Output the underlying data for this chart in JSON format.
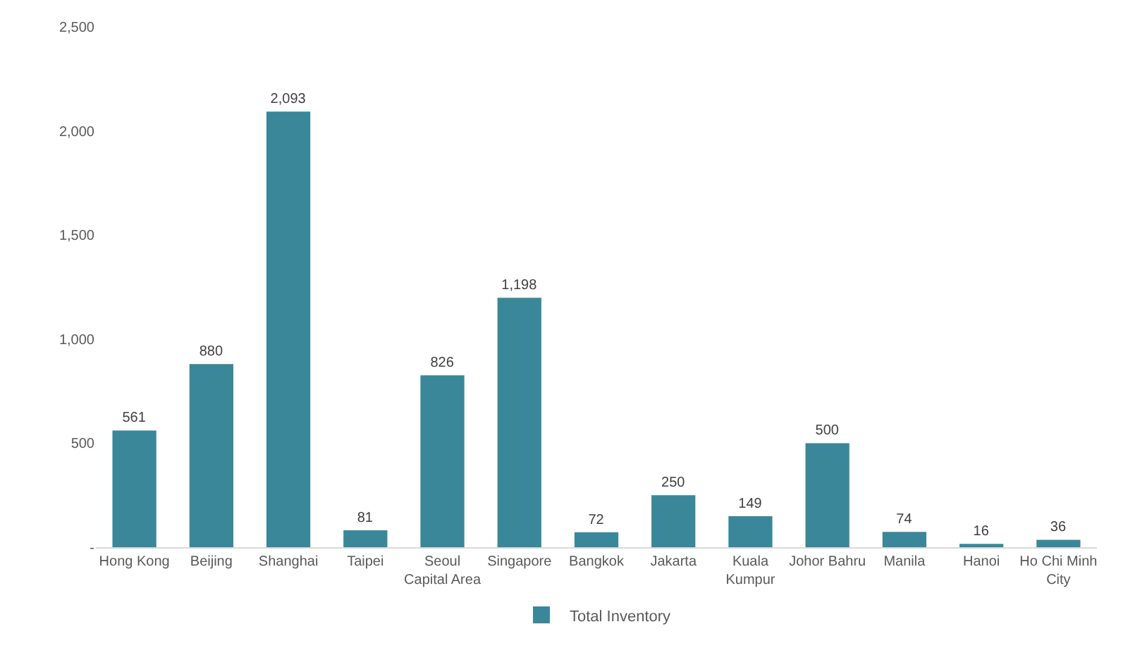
{
  "chart_data": {
    "type": "bar",
    "categories": [
      "Hong Kong",
      "Beijing",
      "Shanghai",
      "Taipei",
      "Seoul\nCapital Area",
      "Singapore",
      "Bangkok",
      "Jakarta",
      "Kuala\nKumpur",
      "Johor Bahru",
      "Manila",
      "Hanoi",
      "Ho Chi Minh\nCity"
    ],
    "series": [
      {
        "name": "Total Inventory",
        "color": "#3a8799",
        "values": [
          561,
          880,
          2093,
          81,
          826,
          1198,
          72,
          250,
          149,
          500,
          74,
          16,
          36
        ],
        "value_labels": [
          "561",
          "880",
          "2,093",
          "81",
          "826",
          "1,198",
          "72",
          "250",
          "149",
          "500",
          "74",
          "16",
          "36"
        ]
      }
    ],
    "ylim": [
      0,
      2500
    ],
    "yticks": [
      {
        "value": 0,
        "label": "-"
      },
      500,
      {
        "value": 1000,
        "label": "1,000"
      },
      {
        "value": 1500,
        "label": "1,500"
      },
      {
        "value": 2000,
        "label": "2,000"
      },
      {
        "value": 2500,
        "label": "2,500"
      }
    ],
    "grid": false,
    "legend": "bottom"
  }
}
